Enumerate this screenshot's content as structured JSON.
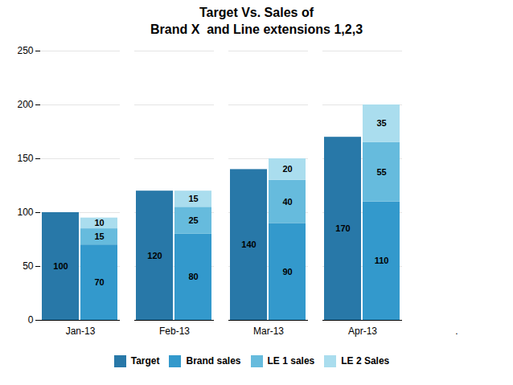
{
  "chart_data": {
    "type": "bar",
    "title": "Target Vs. Sales of\nBrand X  and Line extensions 1,2,3",
    "categories": [
      "Jan-13",
      "Feb-13",
      "Mar-13",
      "Apr-13",
      "."
    ],
    "series": [
      {
        "name": "Target",
        "type": "bar",
        "color": "#2878a8",
        "values": [
          100,
          120,
          140,
          170,
          null
        ]
      },
      {
        "name": "Brand sales",
        "type": "stacked_bar",
        "color": "#3399cc",
        "values": [
          70,
          80,
          90,
          110,
          null
        ]
      },
      {
        "name": "LE 1 sales",
        "type": "stacked_bar",
        "color": "#66bbdd",
        "values": [
          15,
          25,
          40,
          55,
          null
        ]
      },
      {
        "name": "LE 2 Sales",
        "type": "stacked_bar",
        "color": "#aaddee",
        "values": [
          10,
          15,
          20,
          35,
          null
        ]
      }
    ],
    "ylim": [
      0,
      250
    ],
    "yticks": [
      0,
      50,
      100,
      150,
      200,
      250
    ],
    "grid": true,
    "legend": "bottom",
    "data_labels": true
  }
}
